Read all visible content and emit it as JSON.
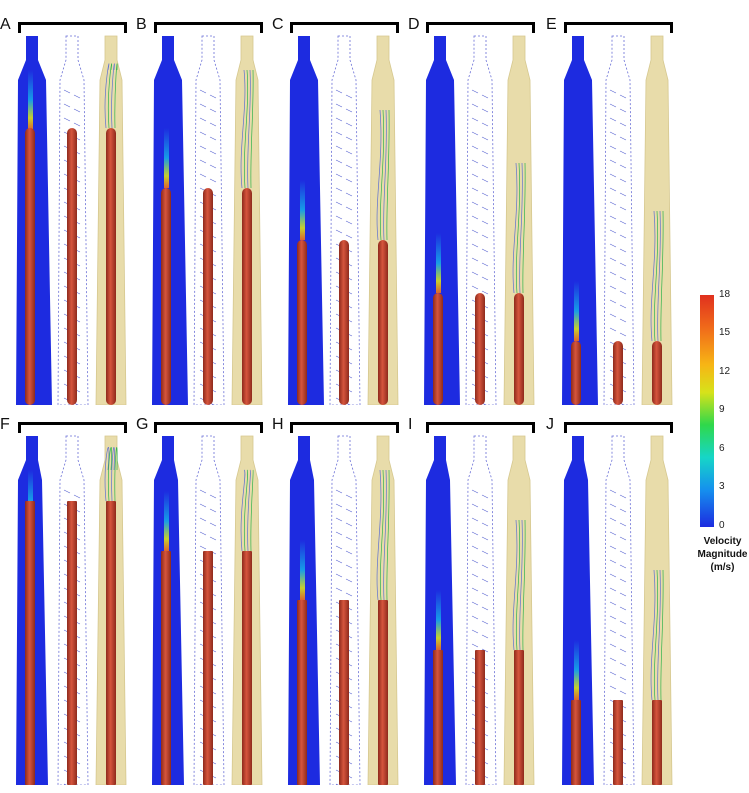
{
  "panels": [
    {
      "label": "A",
      "tip": 0.26
    },
    {
      "label": "B",
      "tip": 0.42
    },
    {
      "label": "C",
      "tip": 0.56
    },
    {
      "label": "D",
      "tip": 0.7
    },
    {
      "label": "E",
      "tip": 0.83
    },
    {
      "label": "F",
      "tip": 0.2
    },
    {
      "label": "G",
      "tip": 0.34
    },
    {
      "label": "H",
      "tip": 0.48
    },
    {
      "label": "I",
      "tip": 0.62
    },
    {
      "label": "J",
      "tip": 0.76
    }
  ],
  "legend": {
    "ticks": [
      "18",
      "15",
      "12",
      "9",
      "6",
      "3",
      "0"
    ],
    "title_line1": "Velocity",
    "title_line2": "Magnitude",
    "title_line3": "(m/s)"
  },
  "colors": {
    "velocity_low": "#1d2be0",
    "velocity_high": "#e0301e",
    "rod": "#c13f2c",
    "tube": "#e8dcaa"
  }
}
